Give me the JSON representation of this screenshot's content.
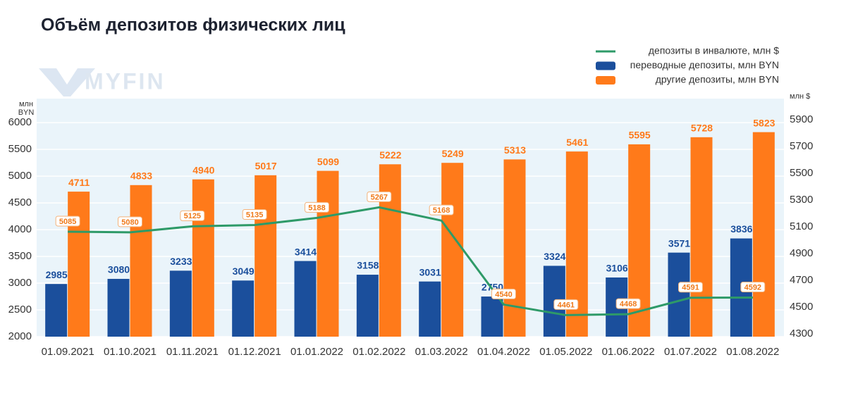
{
  "chart_data": {
    "type": "bar_line",
    "title": "Объём депозитов физических лиц",
    "watermark": "MYFIN",
    "ylabel": "млн BYN",
    "y2label": "млн $",
    "categories": [
      "01.09.2021",
      "01.10.2021",
      "01.11.2021",
      "01.12.2021",
      "01.01.2022",
      "01.02.2022",
      "01.03.2022",
      "01.04.2022",
      "01.05.2022",
      "01.06.2022",
      "01.07.2022",
      "01.08.2022"
    ],
    "series": [
      {
        "name": "депозиты в инвалюте, млн $",
        "type": "line",
        "axis": "y2",
        "color": "#2e9a68",
        "values": [
          5085,
          5080,
          5125,
          5135,
          5188,
          5267,
          5168,
          4540,
          4461,
          4468,
          4591,
          4592
        ]
      },
      {
        "name": "переводные депозиты, млн BYN",
        "type": "bar",
        "color": "#1b4f9c",
        "values": [
          2985,
          3080,
          3233,
          3049,
          3414,
          3158,
          3031,
          2750,
          3324,
          3106,
          3571,
          3836
        ]
      },
      {
        "name": "другие депозиты, млн BYN",
        "type": "bar",
        "color": "#ff7a1a",
        "values": [
          4711,
          4833,
          4940,
          5017,
          5099,
          5222,
          5249,
          5313,
          5461,
          5595,
          5728,
          5823
        ]
      }
    ],
    "ylim": [
      2000,
      6450
    ],
    "yticks": [
      2000,
      2500,
      3000,
      3500,
      4000,
      4500,
      5000,
      5500,
      6000
    ],
    "y2lim": [
      4300,
      6080
    ],
    "y2ticks": [
      4300,
      4500,
      4700,
      4900,
      5100,
      5300,
      5500,
      5700,
      5900
    ],
    "grid": true
  }
}
